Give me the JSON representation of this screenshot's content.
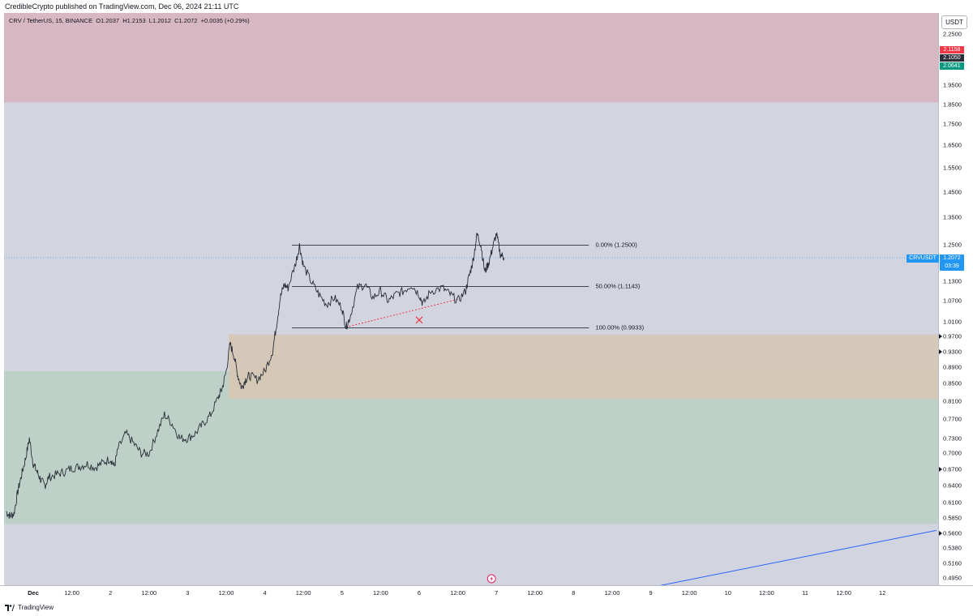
{
  "header": {
    "published": "CredibleCrypto published on TradingView.com, Dec 06, 2024 21:11 UTC"
  },
  "legend": {
    "symbol": "CRV / TetherUS, 15, BINANCE",
    "o_label": "O",
    "o": "1.2037",
    "h_label": "H",
    "h": "1.2153",
    "l_label": "L",
    "l": "1.2012",
    "c_label": "C",
    "c": "1.2072",
    "change": "+0.0035 (+0.29%)"
  },
  "currency_button": "USDT",
  "badges": {
    "red": "2.1158",
    "gray": "2.1050",
    "green": "2.0641",
    "colors": {
      "red": "#f23645",
      "gray": "#2a2e39",
      "green": "#089981"
    }
  },
  "last_price": {
    "symbol": "CRVUSDT",
    "price": "1.2072",
    "countdown": "03:39",
    "color": "#2196f3"
  },
  "fib_labels": [
    {
      "text": "0.00% (1.2500)",
      "price": 1.25
    },
    {
      "text": "50.00% (1.1143)",
      "price": 1.1143
    },
    {
      "text": "100.00% (0.9933)",
      "price": 0.9933
    }
  ],
  "brand": "TradingView",
  "chart_data": {
    "type": "line",
    "title": "CRV / TetherUS, 15, BINANCE",
    "y_scale": "log",
    "y_ticks": [
      "2.2500",
      "2.1100",
      "1.9500",
      "1.8500",
      "1.7500",
      "1.6500",
      "1.5500",
      "1.4500",
      "1.3500",
      "1.2500",
      "1.1300",
      "1.0700",
      "1.0100",
      "0.9700",
      "0.9300",
      "0.8900",
      "0.8500",
      "0.8100",
      "0.7700",
      "0.7300",
      "0.7000",
      "0.6700",
      "0.6400",
      "0.6100",
      "0.5850",
      "0.5600",
      "0.5380",
      "0.5160",
      "0.4950"
    ],
    "y_tick_values": [
      2.25,
      2.11,
      1.95,
      1.85,
      1.75,
      1.65,
      1.55,
      1.45,
      1.35,
      1.25,
      1.13,
      1.07,
      1.01,
      0.97,
      0.93,
      0.89,
      0.85,
      0.81,
      0.77,
      0.73,
      0.7,
      0.67,
      0.64,
      0.61,
      0.585,
      0.56,
      0.538,
      0.516,
      0.495
    ],
    "arrow_ticks": [
      0.97,
      0.93,
      0.67,
      0.56
    ],
    "ylim": [
      0.48,
      2.4
    ],
    "x_ticks": [
      {
        "label": "Dec",
        "t": 0,
        "bold": true
      },
      {
        "label": "12:00",
        "t": 0.5
      },
      {
        "label": "2",
        "t": 1
      },
      {
        "label": "12:00",
        "t": 1.5
      },
      {
        "label": "3",
        "t": 2
      },
      {
        "label": "12:00",
        "t": 2.5
      },
      {
        "label": "4",
        "t": 3
      },
      {
        "label": "12:00",
        "t": 3.5
      },
      {
        "label": "5",
        "t": 4
      },
      {
        "label": "12:00",
        "t": 4.5
      },
      {
        "label": "6",
        "t": 5
      },
      {
        "label": "12:00",
        "t": 5.5
      },
      {
        "label": "7",
        "t": 6
      },
      {
        "label": "12:00",
        "t": 6.5
      },
      {
        "label": "8",
        "t": 7
      },
      {
        "label": "12:00",
        "t": 7.5
      },
      {
        "label": "9",
        "t": 8
      },
      {
        "label": "12:00",
        "t": 8.5
      },
      {
        "label": "10",
        "t": 9
      },
      {
        "label": "12:00",
        "t": 9.5
      },
      {
        "label": "11",
        "t": 10
      },
      {
        "label": "12:00",
        "t": 10.5
      },
      {
        "label": "12",
        "t": 11
      }
    ],
    "series": [
      {
        "values": [
          [
            -0.35,
            0.595
          ],
          [
            -0.3,
            0.588
          ],
          [
            -0.25,
            0.592
          ],
          [
            -0.2,
            0.63
          ],
          [
            -0.15,
            0.66
          ],
          [
            -0.1,
            0.69
          ],
          [
            -0.05,
            0.73
          ],
          [
            0.0,
            0.68
          ],
          [
            0.05,
            0.665
          ],
          [
            0.1,
            0.65
          ],
          [
            0.15,
            0.64
          ],
          [
            0.2,
            0.655
          ],
          [
            0.3,
            0.66
          ],
          [
            0.4,
            0.665
          ],
          [
            0.5,
            0.672
          ],
          [
            0.6,
            0.675
          ],
          [
            0.7,
            0.68
          ],
          [
            0.8,
            0.673
          ],
          [
            0.9,
            0.682
          ],
          [
            1.0,
            0.69
          ],
          [
            1.05,
            0.675
          ],
          [
            1.1,
            0.71
          ],
          [
            1.2,
            0.74
          ],
          [
            1.3,
            0.72
          ],
          [
            1.4,
            0.7
          ],
          [
            1.5,
            0.7
          ],
          [
            1.6,
            0.74
          ],
          [
            1.7,
            0.78
          ],
          [
            1.8,
            0.76
          ],
          [
            1.9,
            0.73
          ],
          [
            2.0,
            0.73
          ],
          [
            2.1,
            0.74
          ],
          [
            2.2,
            0.76
          ],
          [
            2.3,
            0.78
          ],
          [
            2.4,
            0.82
          ],
          [
            2.45,
            0.84
          ],
          [
            2.5,
            0.88
          ],
          [
            2.55,
            0.95
          ],
          [
            2.6,
            0.92
          ],
          [
            2.65,
            0.87
          ],
          [
            2.7,
            0.84
          ],
          [
            2.75,
            0.86
          ],
          [
            2.8,
            0.87
          ],
          [
            2.9,
            0.86
          ],
          [
            3.0,
            0.88
          ],
          [
            3.1,
            0.93
          ],
          [
            3.15,
            1.0
          ],
          [
            3.2,
            1.08
          ],
          [
            3.25,
            1.12
          ],
          [
            3.3,
            1.11
          ],
          [
            3.4,
            1.19
          ],
          [
            3.45,
            1.25
          ],
          [
            3.5,
            1.18
          ],
          [
            3.6,
            1.13
          ],
          [
            3.7,
            1.09
          ],
          [
            3.8,
            1.06
          ],
          [
            3.9,
            1.08
          ],
          [
            4.0,
            1.05
          ],
          [
            4.05,
            0.995
          ],
          [
            4.1,
            1.02
          ],
          [
            4.2,
            1.11
          ],
          [
            4.3,
            1.12
          ],
          [
            4.4,
            1.08
          ],
          [
            4.5,
            1.1
          ],
          [
            4.6,
            1.07
          ],
          [
            4.7,
            1.09
          ],
          [
            4.8,
            1.1
          ],
          [
            4.9,
            1.12
          ],
          [
            5.0,
            1.09
          ],
          [
            5.05,
            1.06
          ],
          [
            5.15,
            1.1
          ],
          [
            5.3,
            1.11
          ],
          [
            5.4,
            1.09
          ],
          [
            5.5,
            1.07
          ],
          [
            5.6,
            1.1
          ],
          [
            5.65,
            1.15
          ],
          [
            5.7,
            1.2
          ],
          [
            5.75,
            1.29
          ],
          [
            5.8,
            1.25
          ],
          [
            5.85,
            1.16
          ],
          [
            5.9,
            1.19
          ],
          [
            5.95,
            1.24
          ],
          [
            6.0,
            1.29
          ],
          [
            6.05,
            1.22
          ],
          [
            6.1,
            1.2072
          ]
        ]
      }
    ],
    "zones": [
      {
        "color": "#d7b7c2",
        "from": 1.86,
        "to": 2.4
      },
      {
        "color": "#bdd1c8",
        "from": 0.575,
        "to": 0.88
      },
      {
        "color": "#d7c5b3",
        "from": 0.815,
        "to": 0.975
      }
    ],
    "fib_levels": [
      1.25,
      1.1143,
      0.9933
    ],
    "trendline": [
      [
        4.05,
        0.995
      ],
      [
        5.5,
        1.075
      ]
    ],
    "cross_marker": [
      5.0,
      1.015
    ],
    "blue_line": [
      [
        7.9,
        0.48
      ],
      [
        11.7,
        0.565
      ]
    ]
  }
}
